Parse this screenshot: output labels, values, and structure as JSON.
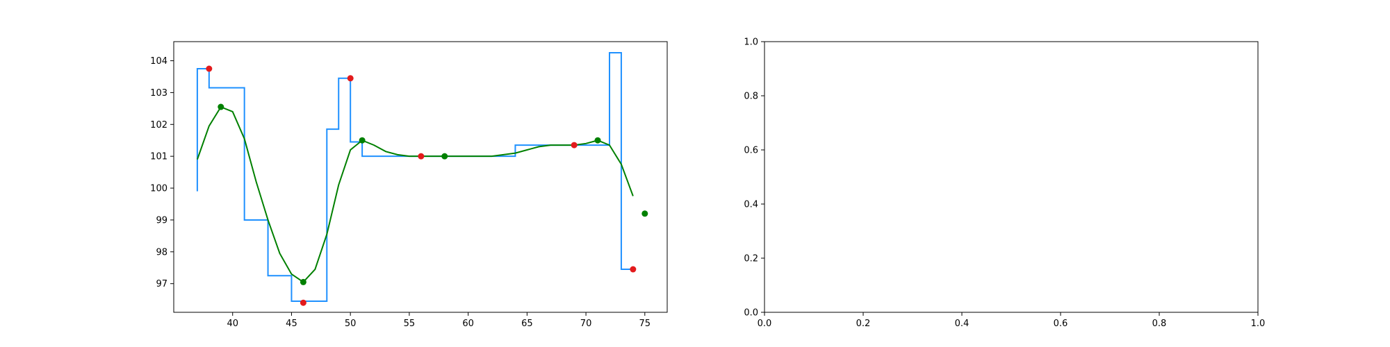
{
  "chart_data": [
    {
      "type": "line",
      "title": "",
      "xlabel": "",
      "ylabel": "",
      "xlim": [
        35,
        76.9
      ],
      "ylim": [
        96.1,
        104.6
      ],
      "xticks": [
        40,
        45,
        50,
        55,
        60,
        65,
        70,
        75
      ],
      "yticks": [
        97,
        98,
        99,
        100,
        101,
        102,
        103,
        104
      ],
      "grid": false,
      "legend": "none",
      "series": [
        {
          "kind": "line",
          "color": "#1e90ff",
          "step": "pre",
          "x": [
            37,
            38,
            39,
            40,
            41,
            42,
            43,
            44,
            45,
            46,
            47,
            48,
            49,
            50,
            51,
            52,
            53,
            54,
            55,
            56,
            57,
            58,
            59,
            60,
            61,
            62,
            63,
            64,
            65,
            66,
            67,
            68,
            69,
            70,
            71,
            72,
            73,
            74
          ],
          "y": [
            99.9,
            103.75,
            103.15,
            103.15,
            103.15,
            99.0,
            99.0,
            97.25,
            97.25,
            96.45,
            96.45,
            96.45,
            101.85,
            103.45,
            101.45,
            101.0,
            101.0,
            101.0,
            101.0,
            101.0,
            101.0,
            101.0,
            101.0,
            101.0,
            101.0,
            101.0,
            101.0,
            101.0,
            101.35,
            101.35,
            101.35,
            101.35,
            101.35,
            101.35,
            101.35,
            101.35,
            104.25,
            97.45
          ]
        },
        {
          "kind": "line",
          "color": "#008000",
          "x": [
            37,
            38,
            39,
            40,
            41,
            42,
            43,
            44,
            45,
            46,
            47,
            48,
            49,
            50,
            51,
            52,
            53,
            54,
            55,
            56,
            57,
            58,
            59,
            60,
            61,
            62,
            63,
            64,
            65,
            66,
            67,
            68,
            69,
            70,
            71,
            72,
            73,
            74
          ],
          "y": [
            100.9,
            101.95,
            102.55,
            102.4,
            101.55,
            100.2,
            99.0,
            97.95,
            97.3,
            97.05,
            97.45,
            98.55,
            100.1,
            101.2,
            101.5,
            101.35,
            101.15,
            101.05,
            101.0,
            101.0,
            101.0,
            101.0,
            101.0,
            101.0,
            101.0,
            101.0,
            101.05,
            101.1,
            101.2,
            101.3,
            101.35,
            101.35,
            101.35,
            101.4,
            101.5,
            101.35,
            100.75,
            99.75
          ]
        },
        {
          "kind": "scatter",
          "color": "#e31a1c",
          "x": [
            38,
            46,
            50,
            56,
            69,
            74
          ],
          "y": [
            103.75,
            96.4,
            103.45,
            101.0,
            101.35,
            97.45
          ]
        },
        {
          "kind": "scatter",
          "color": "#008000",
          "x": [
            39,
            46,
            51,
            58,
            71,
            75
          ],
          "y": [
            102.55,
            97.05,
            101.5,
            101.0,
            101.5,
            99.2
          ]
        }
      ]
    },
    {
      "type": "line",
      "title": "",
      "xlabel": "",
      "ylabel": "",
      "xlim": [
        0.0,
        1.0
      ],
      "ylim": [
        0.0,
        1.0
      ],
      "xticks": [
        0.0,
        0.2,
        0.4,
        0.6,
        0.8,
        1.0
      ],
      "yticks": [
        0.0,
        0.2,
        0.4,
        0.6,
        0.8,
        1.0
      ],
      "xticklabels": [
        "0.0",
        "0.2",
        "0.4",
        "0.6",
        "0.8",
        "1.0"
      ],
      "yticklabels": [
        "0.0",
        "0.2",
        "0.4",
        "0.6",
        "0.8",
        "1.0"
      ],
      "grid": false,
      "legend": "none",
      "series": []
    }
  ]
}
